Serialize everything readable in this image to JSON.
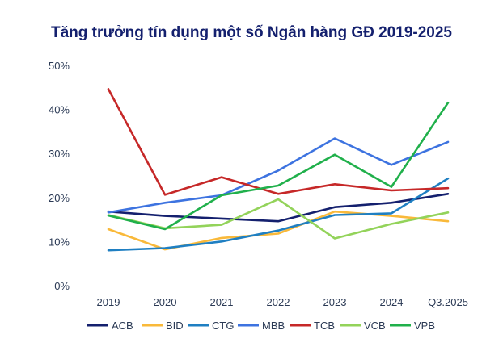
{
  "chart_data": {
    "type": "line",
    "title": "Tăng trưởng tín dụng một số Ngân hàng GĐ 2019-2025",
    "xlabel": "",
    "ylabel": "",
    "categories": [
      "2019",
      "2020",
      "2021",
      "2022",
      "2023",
      "2024",
      "Q3.2025"
    ],
    "ylim": [
      0,
      50
    ],
    "yticks": [
      0,
      10,
      20,
      30,
      40,
      50
    ],
    "ytick_labels": [
      "0%",
      "10%",
      "20%",
      "30%",
      "40%",
      "50%"
    ],
    "grid": false,
    "legend_position": "bottom",
    "series": [
      {
        "name": "ACB",
        "color": "#14206e",
        "values": [
          17,
          16,
          15.4,
          14.8,
          18,
          19,
          21
        ]
      },
      {
        "name": "BID",
        "color": "#f9b93a",
        "values": [
          13,
          8.4,
          11,
          12,
          17,
          16,
          14.8
        ]
      },
      {
        "name": "CTG",
        "color": "#1f7fc2",
        "values": [
          8.2,
          8.7,
          10.2,
          12.7,
          16.2,
          16.6,
          24.5
        ]
      },
      {
        "name": "MBB",
        "color": "#3d73e0",
        "values": [
          16.8,
          19,
          20.7,
          26.3,
          33.6,
          27.6,
          32.8
        ]
      },
      {
        "name": "TCB",
        "color": "#c62828",
        "values": [
          44.8,
          20.8,
          24.8,
          21,
          23.2,
          21.8,
          22.3
        ]
      },
      {
        "name": "VCB",
        "color": "#93d35a",
        "values": [
          16.2,
          13.2,
          14,
          19.8,
          10.9,
          14.2,
          16.8
        ]
      },
      {
        "name": "VPB",
        "color": "#20b04b",
        "values": [
          16.1,
          13,
          20.7,
          22.9,
          29.9,
          22.6,
          41.7
        ]
      }
    ]
  }
}
